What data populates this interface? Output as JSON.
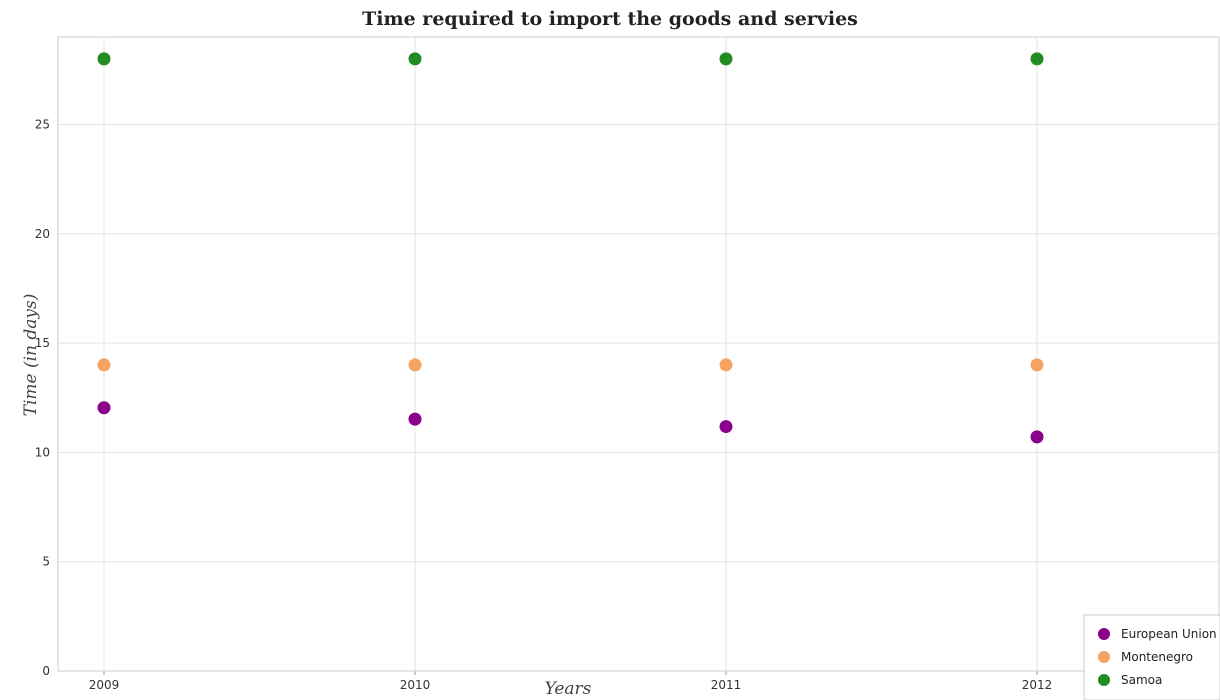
{
  "chart_data": {
    "type": "scatter",
    "title": "Time required to import the goods and servies",
    "xlabel": "Years",
    "ylabel": "Time (in days)",
    "categories": [
      "2009",
      "2010",
      "2011",
      "2012"
    ],
    "ylim": [
      0,
      29
    ],
    "yticks": [
      0,
      5,
      10,
      15,
      20,
      25
    ],
    "ytick_labels": [
      "0",
      "5",
      "10",
      "15",
      "20",
      "25"
    ],
    "grid": true,
    "legend_position": "bottom-right",
    "series": [
      {
        "name": "European Union",
        "color": "#8b008b",
        "values": [
          12.04,
          11.52,
          11.18,
          10.71
        ]
      },
      {
        "name": "Montenegro",
        "color": "#f4a460",
        "values": [
          14,
          14,
          14,
          14
        ]
      },
      {
        "name": "Samoa",
        "color": "#228b22",
        "values": [
          28,
          28,
          28,
          28
        ]
      }
    ]
  }
}
